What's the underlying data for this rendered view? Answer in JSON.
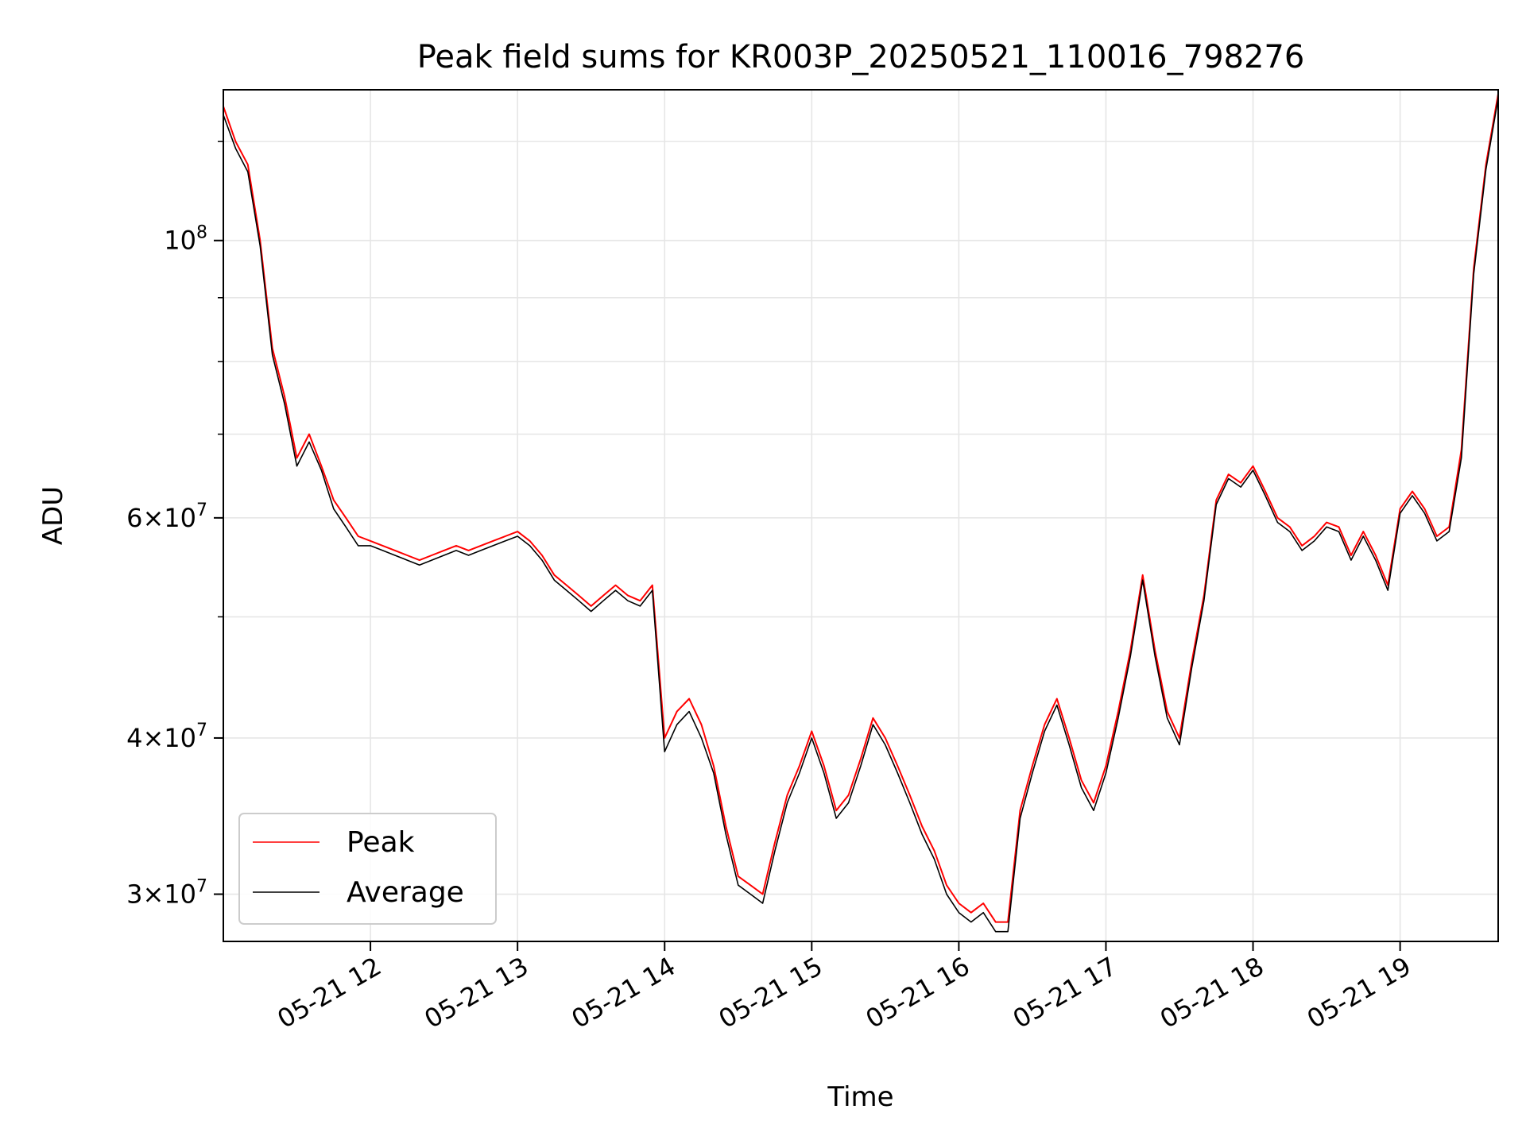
{
  "chart_data": {
    "type": "line",
    "title": "Peak field sums for KR003P_20250521_110016_798276",
    "xlabel": "Time",
    "ylabel": "ADU",
    "yscale": "log",
    "ylim": [
      27500000,
      132000000
    ],
    "xlim": [
      "05-21 11:00",
      "05-21 19:40"
    ],
    "grid": true,
    "legend_position": "lower-left",
    "x_ticks": [
      "05-21 12",
      "05-21 13",
      "05-21 14",
      "05-21 15",
      "05-21 16",
      "05-21 17",
      "05-21 18",
      "05-21 19"
    ],
    "y_ticks": [
      {
        "value": 30000000,
        "mant": "3",
        "exp": "7"
      },
      {
        "value": 40000000,
        "mant": "4",
        "exp": "7"
      },
      {
        "value": 60000000,
        "mant": "6",
        "exp": "7"
      },
      {
        "value": 100000000,
        "mant": "",
        "exp": "8"
      }
    ],
    "x": [
      "05-21 11:00",
      "05-21 11:05",
      "05-21 11:10",
      "05-21 11:15",
      "05-21 11:20",
      "05-21 11:25",
      "05-21 11:30",
      "05-21 11:35",
      "05-21 11:40",
      "05-21 11:45",
      "05-21 11:50",
      "05-21 11:55",
      "05-21 12:00",
      "05-21 12:05",
      "05-21 12:10",
      "05-21 12:15",
      "05-21 12:20",
      "05-21 12:25",
      "05-21 12:30",
      "05-21 12:35",
      "05-21 12:40",
      "05-21 12:45",
      "05-21 12:50",
      "05-21 12:55",
      "05-21 13:00",
      "05-21 13:05",
      "05-21 13:10",
      "05-21 13:15",
      "05-21 13:20",
      "05-21 13:25",
      "05-21 13:30",
      "05-21 13:35",
      "05-21 13:40",
      "05-21 13:45",
      "05-21 13:50",
      "05-21 13:55",
      "05-21 14:00",
      "05-21 14:05",
      "05-21 14:10",
      "05-21 14:15",
      "05-21 14:20",
      "05-21 14:25",
      "05-21 14:30",
      "05-21 14:35",
      "05-21 14:40",
      "05-21 14:45",
      "05-21 14:50",
      "05-21 14:55",
      "05-21 15:00",
      "05-21 15:05",
      "05-21 15:10",
      "05-21 15:15",
      "05-21 15:20",
      "05-21 15:25",
      "05-21 15:30",
      "05-21 15:35",
      "05-21 15:40",
      "05-21 15:45",
      "05-21 15:50",
      "05-21 15:55",
      "05-21 16:00",
      "05-21 16:05",
      "05-21 16:10",
      "05-21 16:15",
      "05-21 16:20",
      "05-21 16:25",
      "05-21 16:30",
      "05-21 16:35",
      "05-21 16:40",
      "05-21 16:45",
      "05-21 16:50",
      "05-21 16:55",
      "05-21 17:00",
      "05-21 17:05",
      "05-21 17:10",
      "05-21 17:15",
      "05-21 17:20",
      "05-21 17:25",
      "05-21 17:30",
      "05-21 17:35",
      "05-21 17:40",
      "05-21 17:45",
      "05-21 17:50",
      "05-21 17:55",
      "05-21 18:00",
      "05-21 18:05",
      "05-21 18:10",
      "05-21 18:15",
      "05-21 18:20",
      "05-21 18:25",
      "05-21 18:30",
      "05-21 18:35",
      "05-21 18:40",
      "05-21 18:45",
      "05-21 18:50",
      "05-21 18:55",
      "05-21 19:00",
      "05-21 19:05",
      "05-21 19:10",
      "05-21 19:15",
      "05-21 19:20",
      "05-21 19:25",
      "05-21 19:30",
      "05-21 19:35",
      "05-21 19:40"
    ],
    "series": [
      {
        "name": "Peak",
        "color": "#ff0000",
        "values": [
          128000000,
          120000000,
          115000000,
          100000000,
          82000000,
          75000000,
          67000000,
          70000000,
          66000000,
          62000000,
          60000000,
          58000000,
          57500000,
          57000000,
          56500000,
          56000000,
          55500000,
          56000000,
          56500000,
          57000000,
          56500000,
          57000000,
          57500000,
          58000000,
          58500000,
          57500000,
          56000000,
          54000000,
          53000000,
          52000000,
          51000000,
          52000000,
          53000000,
          52000000,
          51500000,
          53000000,
          40000000,
          42000000,
          43000000,
          41000000,
          38000000,
          34000000,
          31000000,
          30500000,
          30000000,
          33000000,
          36000000,
          38000000,
          40500000,
          38000000,
          35000000,
          36000000,
          38500000,
          41500000,
          40000000,
          38000000,
          36000000,
          34000000,
          32500000,
          30500000,
          29500000,
          29000000,
          29500000,
          28500000,
          28500000,
          35000000,
          38000000,
          41000000,
          43000000,
          40000000,
          37000000,
          35500000,
          38000000,
          42000000,
          47000000,
          54000000,
          47000000,
          42000000,
          40000000,
          46000000,
          52000000,
          62000000,
          65000000,
          64000000,
          66000000,
          63000000,
          60000000,
          59000000,
          57000000,
          58000000,
          59500000,
          59000000,
          56000000,
          58500000,
          56000000,
          53000000,
          61000000,
          63000000,
          61000000,
          58000000,
          59000000,
          68000000,
          95000000,
          115000000,
          131000000
        ]
      },
      {
        "name": "Average",
        "color": "#000000",
        "values": [
          126000000,
          118500000,
          113500000,
          99000000,
          81000000,
          74000000,
          66000000,
          69000000,
          65500000,
          61000000,
          59000000,
          57000000,
          57000000,
          56500000,
          56000000,
          55500000,
          55000000,
          55500000,
          56000000,
          56500000,
          56000000,
          56500000,
          57000000,
          57500000,
          58000000,
          57000000,
          55500000,
          53500000,
          52500000,
          51500000,
          50500000,
          51500000,
          52500000,
          51500000,
          51000000,
          52500000,
          39000000,
          41000000,
          42000000,
          40000000,
          37500000,
          33500000,
          30500000,
          30000000,
          29500000,
          32500000,
          35500000,
          37500000,
          40000000,
          37500000,
          34500000,
          35500000,
          38000000,
          41000000,
          39500000,
          37500000,
          35500000,
          33500000,
          32000000,
          30000000,
          29000000,
          28500000,
          29000000,
          28000000,
          28000000,
          34500000,
          37500000,
          40500000,
          42500000,
          39500000,
          36500000,
          35000000,
          37500000,
          41500000,
          46500000,
          53500000,
          46500000,
          41500000,
          39500000,
          45500000,
          51500000,
          61500000,
          64500000,
          63500000,
          65500000,
          62500000,
          59500000,
          58500000,
          56500000,
          57500000,
          59000000,
          58500000,
          55500000,
          58000000,
          55500000,
          52500000,
          60500000,
          62500000,
          60500000,
          57500000,
          58500000,
          67000000,
          94000000,
          114000000,
          130000000
        ]
      }
    ]
  }
}
